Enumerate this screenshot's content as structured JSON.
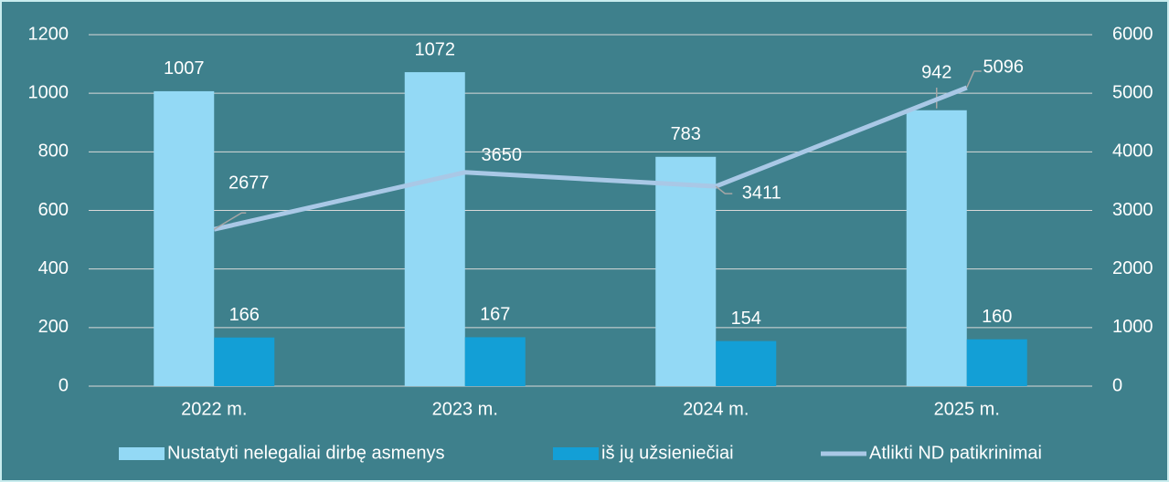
{
  "chart_data": {
    "type": "bar",
    "categories": [
      "2022 m.",
      "2023 m.",
      "2024 m.",
      "2025 m."
    ],
    "series": [
      {
        "name": "Nustatyti nelegaliai dirbę asmenys",
        "type": "bar",
        "color": "#93d9f5",
        "values": [
          1007,
          1072,
          783,
          942
        ]
      },
      {
        "name": "iš jų užsieniečiai",
        "type": "bar",
        "color": "#139fd6",
        "values": [
          166,
          167,
          154,
          160
        ]
      },
      {
        "name": "Atlikti ND patikrinimai",
        "type": "line",
        "axis": "y2",
        "color": "#a9c8e6",
        "values": [
          2677,
          3650,
          3411,
          5096
        ]
      }
    ],
    "ylim": [
      0,
      1200
    ],
    "yticks": [
      0,
      200,
      400,
      600,
      800,
      1000,
      1200
    ],
    "y2lim": [
      0,
      6000
    ],
    "y2ticks": [
      0,
      1000,
      2000,
      3000,
      4000,
      5000,
      6000
    ],
    "grid": true,
    "legend": "bottom"
  }
}
